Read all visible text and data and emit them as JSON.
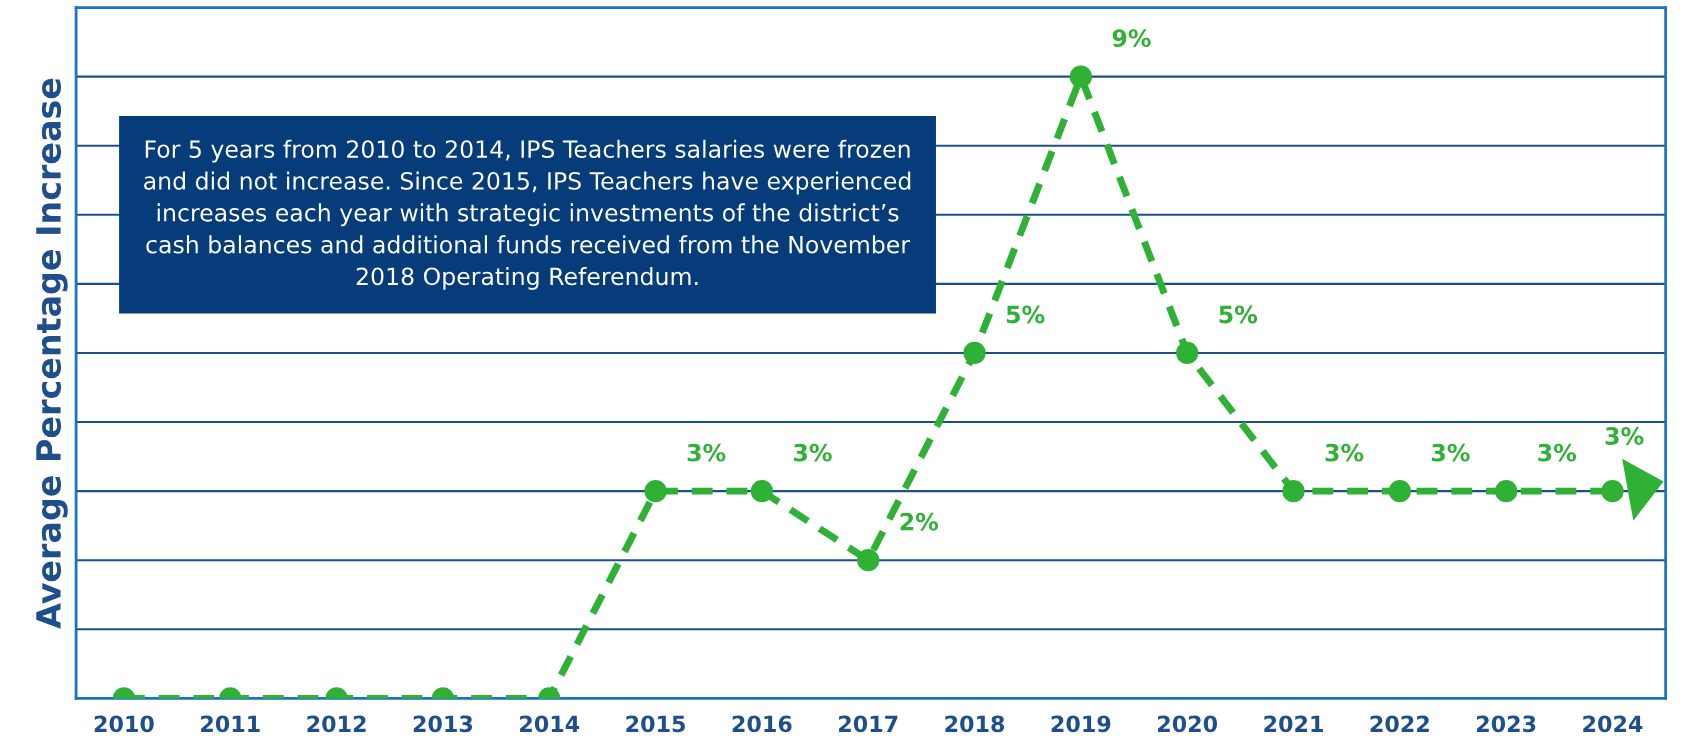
{
  "chart_data": {
    "type": "line",
    "ylabel": "Average Percentage Increase",
    "categories": [
      "2010",
      "2011",
      "2012",
      "2013",
      "2014",
      "2015",
      "2016",
      "2017",
      "2018",
      "2019",
      "2020",
      "2021",
      "2022",
      "2023",
      "2024"
    ],
    "series": [
      {
        "color": "#2eb135",
        "values": [
          0,
          0,
          0,
          0,
          0,
          3,
          3,
          2,
          5,
          9,
          5,
          3,
          3,
          3,
          3
        ],
        "value_labels": [
          null,
          null,
          null,
          null,
          null,
          "3%",
          "3%",
          "2%",
          "5%",
          "9%",
          "5%",
          "3%",
          "3%",
          "3%",
          "3%"
        ]
      }
    ],
    "ylim": [
      0,
      10
    ],
    "yticks": [
      {
        "value": 0,
        "label": null
      },
      {
        "value": 1,
        "label": null
      },
      {
        "value": 2,
        "label": null
      },
      {
        "value": 3,
        "label": null
      },
      {
        "value": 4,
        "label": null
      },
      {
        "value": 5,
        "label": null
      },
      {
        "value": 6,
        "label": null
      },
      {
        "value": 7,
        "label": null
      },
      {
        "value": 8,
        "label": null
      },
      {
        "value": 9,
        "label": null
      },
      {
        "value": 10,
        "label": null
      }
    ],
    "tick_labels": "x",
    "grid": "y",
    "marker": "circle",
    "line_style": "dashed",
    "annotations": [
      "For 5 years from 2010 to 2014, IPS Teachers salaries were frozen and did not increase. Since 2015, IPS Teachers have experienced increases each year with strategic investments of the district’s cash balances and additional funds received from the November 2018 Operating Referendum."
    ]
  }
}
